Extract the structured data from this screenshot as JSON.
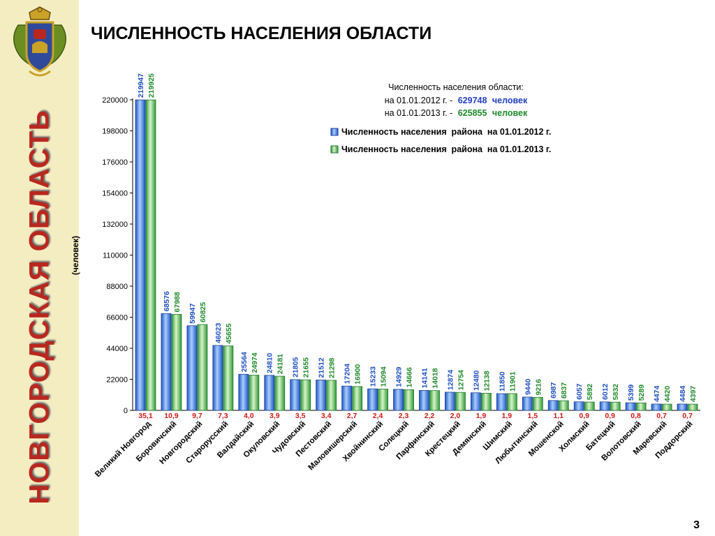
{
  "page": {
    "title": "ЧИСЛЕННОСТЬ НАСЕЛЕНИЯ ОБЛАСТИ",
    "side_title": "НОВГОРОДСКАЯ ОБЛАСТЬ",
    "page_number": "3",
    "colors": {
      "sidebar_bg": "#f5edc2",
      "side_title": "#b8281f",
      "series_2012": "#2f6fd6",
      "series_2013": "#2ea33a",
      "share_text": "#d01818"
    }
  },
  "chart_data": {
    "type": "bar",
    "ylabel": "(человек)",
    "ylim": [
      0,
      220000
    ],
    "yticks": [
      "0",
      "22000",
      "44000",
      "66000",
      "88000",
      "110000",
      "132000",
      "154000",
      "176000",
      "198000",
      "220000"
    ],
    "grid": false,
    "legend_position": "top-right",
    "info": {
      "line1": "Численность населения области:",
      "line2_prefix": "на 01.01.2012 г. -",
      "line2_value": "629748",
      "line2_suffix": "человек",
      "line3_prefix": "на 01.01.2013 г. -",
      "line3_value": "625855",
      "line3_suffix": "человек"
    },
    "categories": [
      "Великий Новгород",
      "Боровичский",
      "Новгородский",
      "Старорусский",
      "Валдайский",
      "Окуловский",
      "Чудовский",
      "Пестовский",
      "Маловишерский",
      "Хвойнинский",
      "Солецкий",
      "Парфинский",
      "Крестецкий",
      "Демянский",
      "Шимский",
      "Любытинский",
      "Мошенской",
      "Холмский",
      "Батецкий",
      "Волотовский",
      "Маревский",
      "Поддорский"
    ],
    "series": [
      {
        "name": "Численность населения  района  на 01.01.2012 г.",
        "values": [
          219947,
          68576,
          59947,
          46023,
          25564,
          24810,
          21805,
          21512,
          17204,
          15233,
          14929,
          14141,
          12874,
          12480,
          11850,
          9440,
          6987,
          6057,
          6012,
          5399,
          4474,
          4484
        ]
      },
      {
        "name": "Численность населения  района  на 01.01.2013 г.",
        "values": [
          219925,
          67988,
          60825,
          45655,
          24974,
          24181,
          21655,
          21298,
          16900,
          15094,
          14666,
          14018,
          12754,
          12138,
          11901,
          9216,
          6837,
          5892,
          5832,
          5289,
          4420,
          4397
        ]
      }
    ],
    "shares": [
      "35,1",
      "10,9",
      "9,7",
      "7,3",
      "4,0",
      "3,9",
      "3,5",
      "3,4",
      "2,7",
      "2,4",
      "2,3",
      "2,2",
      "2,0",
      "1,9",
      "1,9",
      "1,5",
      "1,1",
      "0,9",
      "0,9",
      "0,8",
      "0,7",
      "0,7"
    ]
  }
}
